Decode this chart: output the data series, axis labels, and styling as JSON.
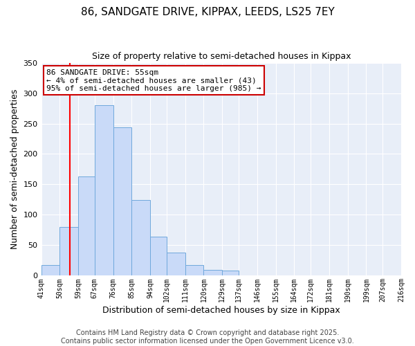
{
  "title_line1": "86, SANDGATE DRIVE, KIPPAX, LEEDS, LS25 7EY",
  "title_line2": "Size of property relative to semi-detached houses in Kippax",
  "xlabel": "Distribution of semi-detached houses by size in Kippax",
  "ylabel": "Number of semi-detached properties",
  "bar_edges": [
    41,
    50,
    59,
    67,
    76,
    85,
    94,
    102,
    111,
    120,
    129,
    137,
    146,
    155,
    164,
    172,
    181,
    190,
    199,
    207,
    216
  ],
  "bar_heights": [
    18,
    80,
    163,
    280,
    244,
    124,
    64,
    38,
    18,
    10,
    8,
    1,
    1,
    0,
    0,
    0,
    0,
    0,
    0,
    0
  ],
  "bar_color": "#c9daf8",
  "bar_edgecolor": "#6fa8dc",
  "red_line_x": 55,
  "annotation_title": "86 SANDGATE DRIVE: 55sqm",
  "annotation_line1": "← 4% of semi-detached houses are smaller (43)",
  "annotation_line2": "95% of semi-detached houses are larger (985) →",
  "annotation_box_facecolor": "#ffffff",
  "annotation_box_edgecolor": "#cc0000",
  "ylim": [
    0,
    350
  ],
  "yticks": [
    0,
    50,
    100,
    150,
    200,
    250,
    300,
    350
  ],
  "xlim_left": 41,
  "xlim_right": 216,
  "tick_labels": [
    "41sqm",
    "50sqm",
    "59sqm",
    "67sqm",
    "76sqm",
    "85sqm",
    "94sqm",
    "102sqm",
    "111sqm",
    "120sqm",
    "129sqm",
    "137sqm",
    "146sqm",
    "155sqm",
    "164sqm",
    "172sqm",
    "181sqm",
    "190sqm",
    "199sqm",
    "207sqm",
    "216sqm"
  ],
  "footer_line1": "Contains HM Land Registry data © Crown copyright and database right 2025.",
  "footer_line2": "Contains public sector information licensed under the Open Government Licence v3.0.",
  "fig_facecolor": "#ffffff",
  "plot_facecolor": "#e8eef8",
  "grid_color": "#ffffff",
  "title_fontsize": 11,
  "subtitle_fontsize": 9,
  "xlabel_fontsize": 9,
  "ylabel_fontsize": 9,
  "annotation_fontsize": 8,
  "footer_fontsize": 7
}
